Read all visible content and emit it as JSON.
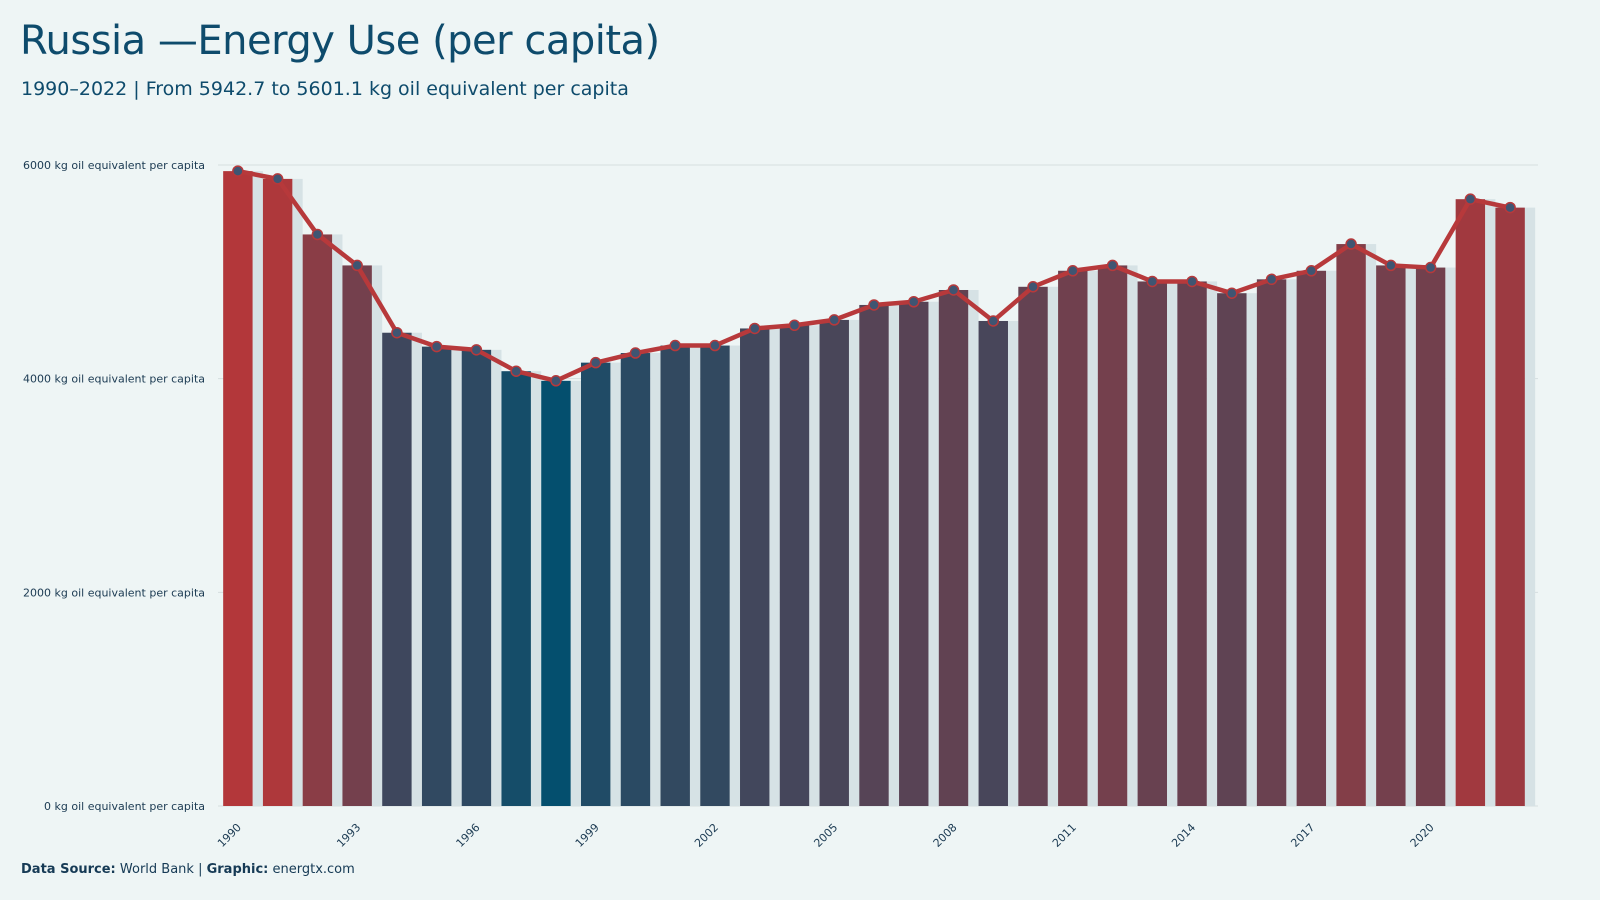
{
  "header": {
    "title": "Russia —Energy Use (per capita)",
    "subtitle": "1990–2022 | From 5942.7  to 5601.1  kg oil equivalent per capita"
  },
  "footer": {
    "source_label": "Data Source:",
    "source_value": " World Bank | ",
    "graphic_label": "Graphic:",
    "graphic_value": " energtx.com"
  },
  "colors": {
    "background": "#eef5f5",
    "high": "#b3373a",
    "low": "#044f6e",
    "line": "#b7393b",
    "marker": "#3f5572",
    "grid": "#d5dedf",
    "bar_band": "#d6e2e5"
  },
  "chart_data": {
    "type": "bar",
    "title": "Russia —Energy Use (per capita)",
    "subtitle": "1990–2022 | From 5942.7  to 5601.1  kg oil equivalent per capita",
    "xlabel": "",
    "ylabel": "",
    "ylim": [
      0,
      6000
    ],
    "yticks": [
      0,
      2000,
      4000,
      6000
    ],
    "ytick_labels": [
      "0 kg oil equivalent per capita",
      "2000 kg oil equivalent per capita",
      "4000 kg oil equivalent per capita",
      "6000 kg oil equivalent per capita"
    ],
    "xtick_labels": [
      "1990",
      "1993",
      "1996",
      "1999",
      "2002",
      "2005",
      "2008",
      "2011",
      "2014",
      "2017",
      "2020"
    ],
    "grid": true,
    "overlay": "line with markers",
    "categories": [
      "1990",
      "1991",
      "1992",
      "1993",
      "1994",
      "1995",
      "1996",
      "1997",
      "1998",
      "1999",
      "2000",
      "2001",
      "2002",
      "2003",
      "2004",
      "2005",
      "2006",
      "2007",
      "2008",
      "2009",
      "2010",
      "2011",
      "2012",
      "2013",
      "2014",
      "2015",
      "2016",
      "2017",
      "2018",
      "2019",
      "2020",
      "2021",
      "2022"
    ],
    "values": [
      5942.7,
      5870,
      5350,
      5060,
      4430,
      4300,
      4270,
      4070,
      3980,
      4150,
      4240,
      4310,
      4310,
      4470,
      4500,
      4550,
      4690,
      4720,
      4830,
      4540,
      4860,
      5010,
      5060,
      4910,
      4910,
      4800,
      4930,
      5010,
      5260,
      5060,
      5040,
      5680,
      5601.1
    ]
  }
}
